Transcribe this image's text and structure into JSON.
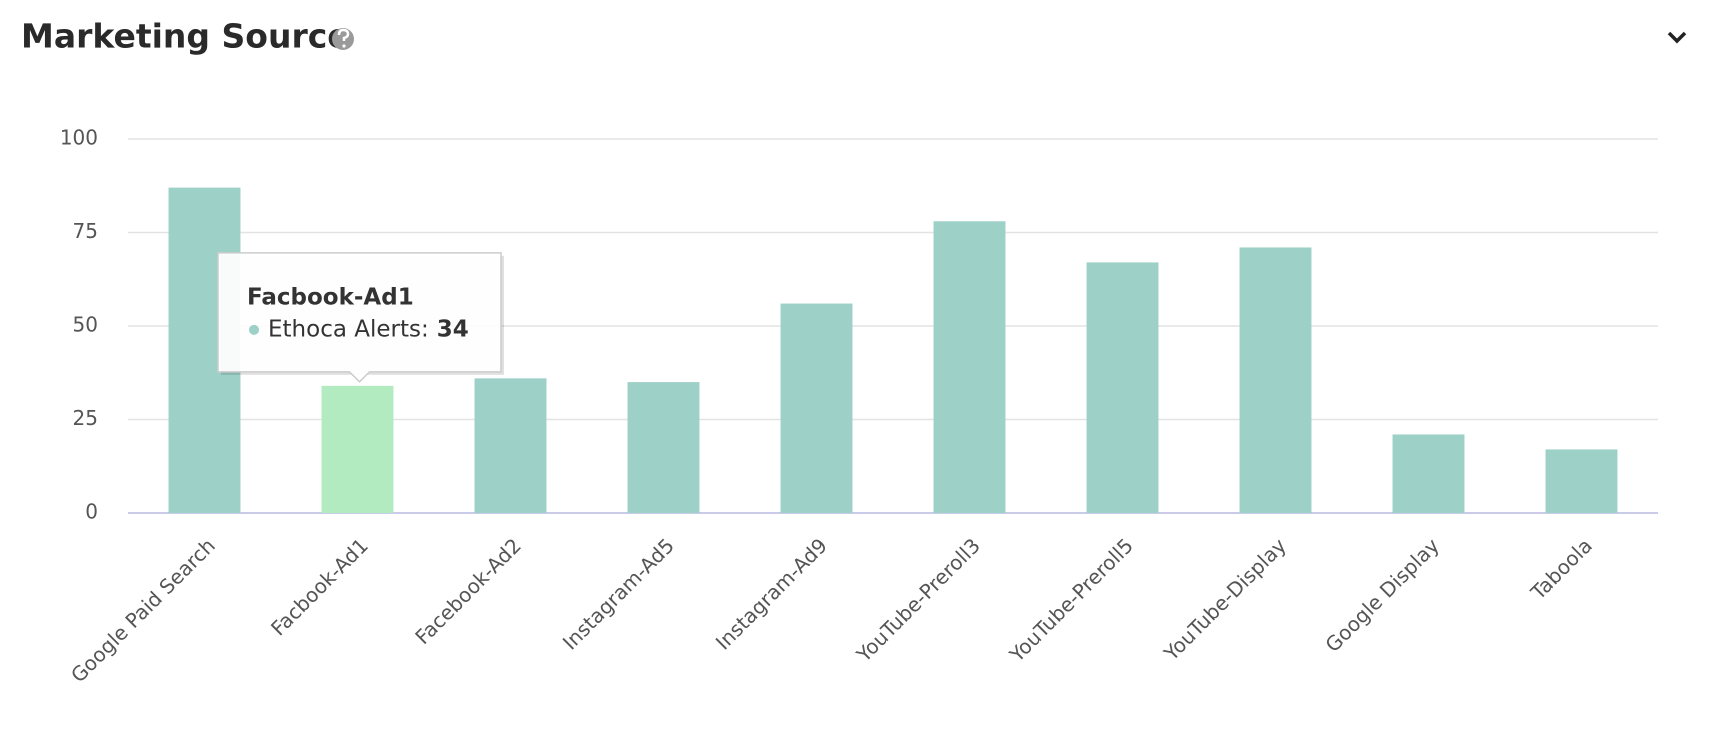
{
  "chart_data": {
    "type": "bar",
    "title": "Marketing Source",
    "categories": [
      "Google Paid Search",
      "Facbook-Ad1",
      "Facebook-Ad2",
      "Instagram-Ad5",
      "Instagram-Ad9",
      "YouTube-Preroll3",
      "YouTube-Preroll5",
      "YouTube-Display",
      "Google Display",
      "Taboola"
    ],
    "series": [
      {
        "name": "Ethoca Alerts",
        "color": "#9dd0c7",
        "values": [
          87,
          34,
          36,
          35,
          56,
          78,
          67,
          71,
          21,
          17
        ]
      }
    ],
    "ylim": [
      0,
      100
    ],
    "yticks": [
      0,
      25,
      50,
      75,
      100
    ],
    "grid": true,
    "tooltip": {
      "category": "Facbook-Ad1",
      "label": "Ethoca Alerts:",
      "color": "#b3ebc0"
    }
  }
}
